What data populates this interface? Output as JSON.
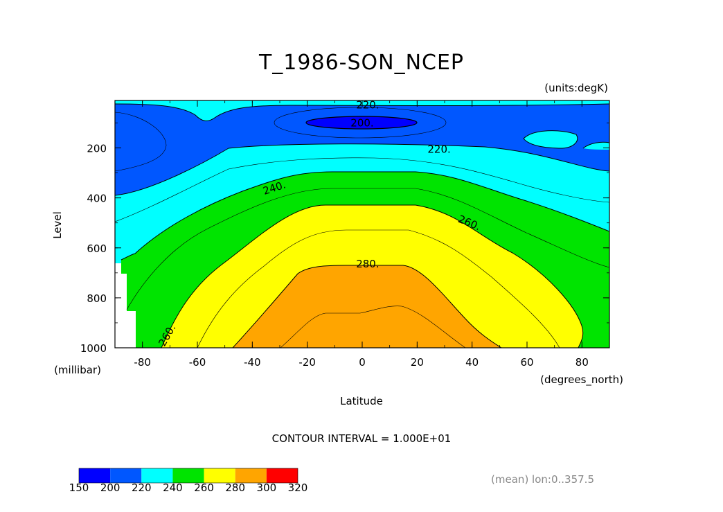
{
  "chart_data": {
    "type": "contour",
    "title": "T_1986-SON_NCEP",
    "units_label": "(units:degK)",
    "xlabel": "Latitude",
    "x_units": "(degrees_north)",
    "ylabel": "Level",
    "y_units": "(millibar)",
    "xlim": [
      -90,
      90
    ],
    "ylim": [
      1000,
      10
    ],
    "x_ticks": [
      "-80",
      "-60",
      "-40",
      "-20",
      "0",
      "20",
      "40",
      "60",
      "80"
    ],
    "x_tick_values": [
      -80,
      -60,
      -40,
      -20,
      0,
      20,
      40,
      60,
      80
    ],
    "y_ticks": [
      "200",
      "400",
      "600",
      "800",
      "1000"
    ],
    "y_tick_values": [
      200,
      400,
      600,
      800,
      1000
    ],
    "contour_labels": [
      {
        "text": "220.",
        "lat": 2,
        "lev": 28
      },
      {
        "text": "200.",
        "lat": 0,
        "lev": 100
      },
      {
        "text": "220.",
        "lat": 28,
        "lev": 205
      },
      {
        "text": "240.",
        "lat": -32,
        "lev": 360
      },
      {
        "text": "260.",
        "lat": 39,
        "lev": 500
      },
      {
        "text": "280.",
        "lat": 2,
        "lev": 665
      },
      {
        "text": "260.",
        "lat": -71,
        "lev": 950
      }
    ],
    "contour_interval_text": "CONTOUR INTERVAL = 1.000E+01",
    "averaging_note": "(mean) lon:0..357.5",
    "colorbar": {
      "levels": [
        "150",
        "200",
        "220",
        "240",
        "260",
        "280",
        "300",
        "320"
      ],
      "colors": [
        "#0000ff",
        "#0057ff",
        "#00ffff",
        "#00e400",
        "#ffff00",
        "#ffa500",
        "#ff0000"
      ]
    }
  }
}
